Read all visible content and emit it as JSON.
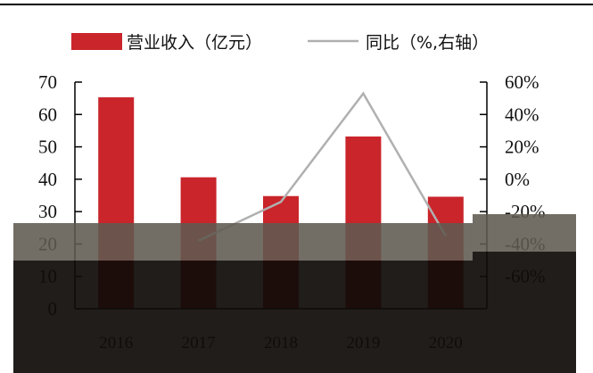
{
  "legend": {
    "bar_label": "营业收入（亿元）",
    "line_label": "同比（%,右轴）"
  },
  "colors": {
    "bar": "#c9252b",
    "line": "#b0b0b0",
    "axis": "#000000",
    "overlay_dark": "#0f0c09",
    "overlay_mid": "#5f5a50"
  },
  "chart_data": {
    "type": "bar",
    "categories": [
      "2016",
      "2017",
      "2018",
      "2019",
      "2020"
    ],
    "series": [
      {
        "name": "营业收入（亿元）",
        "type": "bar",
        "axis": "left",
        "values": [
          65.3,
          40.6,
          34.8,
          53.2,
          34.6
        ]
      },
      {
        "name": "同比（%,右轴）",
        "type": "line",
        "axis": "right",
        "values": [
          null,
          -38,
          -14,
          53,
          -35
        ]
      }
    ],
    "title": "",
    "xlabel": "",
    "ylabel": "",
    "ylim": [
      0,
      70
    ],
    "yticks": [
      "70",
      "60",
      "50",
      "40",
      "30",
      "20",
      "10",
      "0"
    ],
    "y2lim": [
      -80,
      60
    ],
    "y2ticks": [
      "60%",
      "40%",
      "20%",
      "0%",
      "-20%",
      "-40%",
      "-60%"
    ],
    "legend_position": "top",
    "grid": false
  }
}
